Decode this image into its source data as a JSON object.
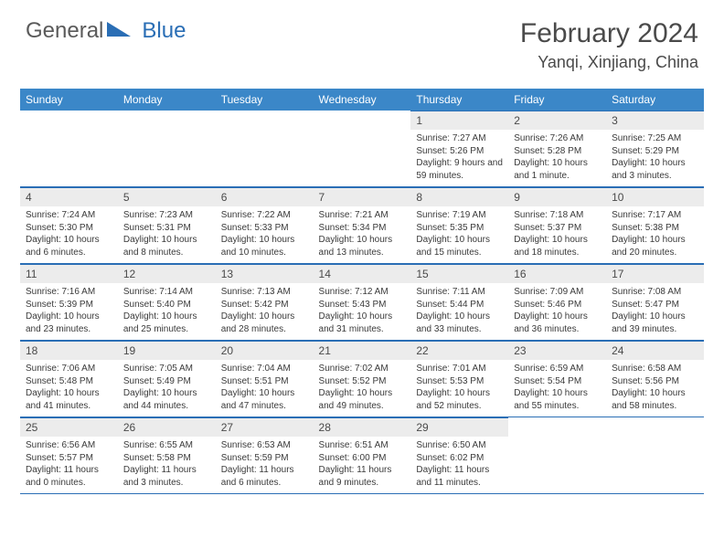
{
  "brand": {
    "part1": "General",
    "part2": "Blue"
  },
  "title": "February 2024",
  "location": "Yanqi, Xinjiang, China",
  "colors": {
    "header_bg": "#3b87c8",
    "rule": "#2a6eb5",
    "daynum_bg": "#ececec",
    "text": "#4a4a4a"
  },
  "weekdays": [
    "Sunday",
    "Monday",
    "Tuesday",
    "Wednesday",
    "Thursday",
    "Friday",
    "Saturday"
  ],
  "weeks": [
    [
      null,
      null,
      null,
      null,
      {
        "n": "1",
        "sr": "Sunrise: 7:27 AM",
        "ss": "Sunset: 5:26 PM",
        "dl": "Daylight: 9 hours and 59 minutes."
      },
      {
        "n": "2",
        "sr": "Sunrise: 7:26 AM",
        "ss": "Sunset: 5:28 PM",
        "dl": "Daylight: 10 hours and 1 minute."
      },
      {
        "n": "3",
        "sr": "Sunrise: 7:25 AM",
        "ss": "Sunset: 5:29 PM",
        "dl": "Daylight: 10 hours and 3 minutes."
      }
    ],
    [
      {
        "n": "4",
        "sr": "Sunrise: 7:24 AM",
        "ss": "Sunset: 5:30 PM",
        "dl": "Daylight: 10 hours and 6 minutes."
      },
      {
        "n": "5",
        "sr": "Sunrise: 7:23 AM",
        "ss": "Sunset: 5:31 PM",
        "dl": "Daylight: 10 hours and 8 minutes."
      },
      {
        "n": "6",
        "sr": "Sunrise: 7:22 AM",
        "ss": "Sunset: 5:33 PM",
        "dl": "Daylight: 10 hours and 10 minutes."
      },
      {
        "n": "7",
        "sr": "Sunrise: 7:21 AM",
        "ss": "Sunset: 5:34 PM",
        "dl": "Daylight: 10 hours and 13 minutes."
      },
      {
        "n": "8",
        "sr": "Sunrise: 7:19 AM",
        "ss": "Sunset: 5:35 PM",
        "dl": "Daylight: 10 hours and 15 minutes."
      },
      {
        "n": "9",
        "sr": "Sunrise: 7:18 AM",
        "ss": "Sunset: 5:37 PM",
        "dl": "Daylight: 10 hours and 18 minutes."
      },
      {
        "n": "10",
        "sr": "Sunrise: 7:17 AM",
        "ss": "Sunset: 5:38 PM",
        "dl": "Daylight: 10 hours and 20 minutes."
      }
    ],
    [
      {
        "n": "11",
        "sr": "Sunrise: 7:16 AM",
        "ss": "Sunset: 5:39 PM",
        "dl": "Daylight: 10 hours and 23 minutes."
      },
      {
        "n": "12",
        "sr": "Sunrise: 7:14 AM",
        "ss": "Sunset: 5:40 PM",
        "dl": "Daylight: 10 hours and 25 minutes."
      },
      {
        "n": "13",
        "sr": "Sunrise: 7:13 AM",
        "ss": "Sunset: 5:42 PM",
        "dl": "Daylight: 10 hours and 28 minutes."
      },
      {
        "n": "14",
        "sr": "Sunrise: 7:12 AM",
        "ss": "Sunset: 5:43 PM",
        "dl": "Daylight: 10 hours and 31 minutes."
      },
      {
        "n": "15",
        "sr": "Sunrise: 7:11 AM",
        "ss": "Sunset: 5:44 PM",
        "dl": "Daylight: 10 hours and 33 minutes."
      },
      {
        "n": "16",
        "sr": "Sunrise: 7:09 AM",
        "ss": "Sunset: 5:46 PM",
        "dl": "Daylight: 10 hours and 36 minutes."
      },
      {
        "n": "17",
        "sr": "Sunrise: 7:08 AM",
        "ss": "Sunset: 5:47 PM",
        "dl": "Daylight: 10 hours and 39 minutes."
      }
    ],
    [
      {
        "n": "18",
        "sr": "Sunrise: 7:06 AM",
        "ss": "Sunset: 5:48 PM",
        "dl": "Daylight: 10 hours and 41 minutes."
      },
      {
        "n": "19",
        "sr": "Sunrise: 7:05 AM",
        "ss": "Sunset: 5:49 PM",
        "dl": "Daylight: 10 hours and 44 minutes."
      },
      {
        "n": "20",
        "sr": "Sunrise: 7:04 AM",
        "ss": "Sunset: 5:51 PM",
        "dl": "Daylight: 10 hours and 47 minutes."
      },
      {
        "n": "21",
        "sr": "Sunrise: 7:02 AM",
        "ss": "Sunset: 5:52 PM",
        "dl": "Daylight: 10 hours and 49 minutes."
      },
      {
        "n": "22",
        "sr": "Sunrise: 7:01 AM",
        "ss": "Sunset: 5:53 PM",
        "dl": "Daylight: 10 hours and 52 minutes."
      },
      {
        "n": "23",
        "sr": "Sunrise: 6:59 AM",
        "ss": "Sunset: 5:54 PM",
        "dl": "Daylight: 10 hours and 55 minutes."
      },
      {
        "n": "24",
        "sr": "Sunrise: 6:58 AM",
        "ss": "Sunset: 5:56 PM",
        "dl": "Daylight: 10 hours and 58 minutes."
      }
    ],
    [
      {
        "n": "25",
        "sr": "Sunrise: 6:56 AM",
        "ss": "Sunset: 5:57 PM",
        "dl": "Daylight: 11 hours and 0 minutes."
      },
      {
        "n": "26",
        "sr": "Sunrise: 6:55 AM",
        "ss": "Sunset: 5:58 PM",
        "dl": "Daylight: 11 hours and 3 minutes."
      },
      {
        "n": "27",
        "sr": "Sunrise: 6:53 AM",
        "ss": "Sunset: 5:59 PM",
        "dl": "Daylight: 11 hours and 6 minutes."
      },
      {
        "n": "28",
        "sr": "Sunrise: 6:51 AM",
        "ss": "Sunset: 6:00 PM",
        "dl": "Daylight: 11 hours and 9 minutes."
      },
      {
        "n": "29",
        "sr": "Sunrise: 6:50 AM",
        "ss": "Sunset: 6:02 PM",
        "dl": "Daylight: 11 hours and 11 minutes."
      },
      null,
      null
    ]
  ]
}
